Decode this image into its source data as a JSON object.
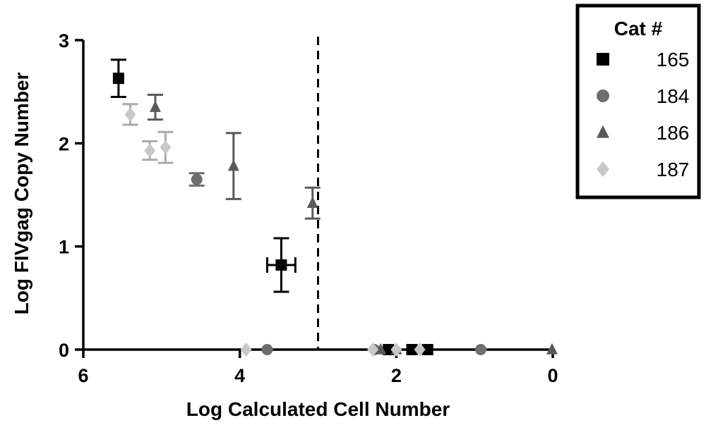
{
  "chart_data": {
    "type": "scatter",
    "xlabel": "Log Calculated Cell Number",
    "ylabel": "Log FIVgag Copy  Number",
    "xlim": [
      6,
      0
    ],
    "ylim": [
      0,
      3
    ],
    "x_ticks": [
      {
        "value": 6,
        "label": "6"
      },
      {
        "value": 4,
        "label": "4"
      },
      {
        "value": 2,
        "label": "2"
      },
      {
        "value": 0,
        "label": "0"
      }
    ],
    "y_ticks": [
      {
        "value": 0,
        "label": "0"
      },
      {
        "value": 1,
        "label": "1"
      },
      {
        "value": 2,
        "label": "2"
      },
      {
        "value": 3,
        "label": "3"
      }
    ],
    "threshold_x": 3.0,
    "legend": {
      "title": "Cat #",
      "placement": "top-right",
      "entries": [
        {
          "label": "165",
          "marker": "square",
          "color": "#000000"
        },
        {
          "label": "184",
          "marker": "circle",
          "color": "#6e6e6e"
        },
        {
          "label": "186",
          "marker": "triangle",
          "color": "#5a5a5a"
        },
        {
          "label": "187",
          "marker": "diamond",
          "color": "#c8c8c8"
        }
      ]
    },
    "series": [
      {
        "name": "165",
        "points": [
          {
            "x": 5.55,
            "y": 2.63,
            "yerr": 0.18
          },
          {
            "x": 3.47,
            "y": 0.82,
            "yerr": 0.26,
            "xerr": 0.18
          },
          {
            "x": 2.1,
            "y": 0.0
          },
          {
            "x": 1.8,
            "y": 0.0
          },
          {
            "x": 1.6,
            "y": 0.0
          }
        ]
      },
      {
        "name": "184",
        "points": [
          {
            "x": 4.55,
            "y": 1.65,
            "yerr": 0.06
          },
          {
            "x": 3.65,
            "y": 0.0
          },
          {
            "x": 2.28,
            "y": 0.0
          },
          {
            "x": 0.92,
            "y": 0.0
          }
        ]
      },
      {
        "name": "186",
        "points": [
          {
            "x": 5.08,
            "y": 2.35,
            "yerr": 0.12
          },
          {
            "x": 4.08,
            "y": 1.78,
            "yerr": 0.32
          },
          {
            "x": 3.07,
            "y": 1.42,
            "yerr": 0.15
          },
          {
            "x": 2.2,
            "y": 0.0
          },
          {
            "x": 2.0,
            "y": 0.0
          },
          {
            "x": 0.01,
            "y": 0.0
          }
        ]
      },
      {
        "name": "187",
        "points": [
          {
            "x": 5.4,
            "y": 2.28,
            "yerr": 0.1
          },
          {
            "x": 5.15,
            "y": 1.93,
            "yerr": 0.09
          },
          {
            "x": 4.95,
            "y": 1.96,
            "yerr": 0.15
          },
          {
            "x": 3.92,
            "y": 0.0
          },
          {
            "x": 2.3,
            "y": 0.0
          },
          {
            "x": 2.0,
            "y": 0.0
          },
          {
            "x": 1.7,
            "y": 0.0
          }
        ]
      }
    ]
  }
}
